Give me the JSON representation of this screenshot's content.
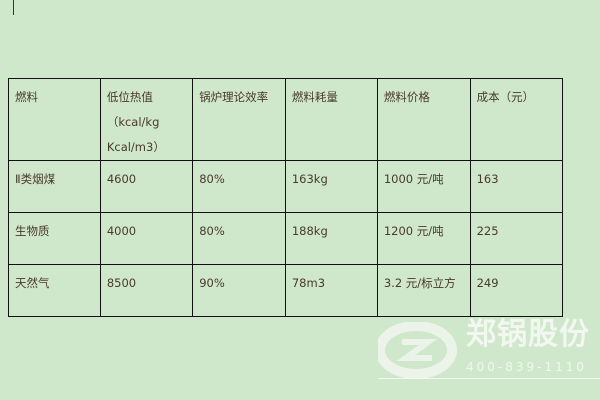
{
  "table": {
    "headers": [
      "燃料",
      [
        "低位热值",
        "（kcal/kg",
        "Kcal/m3）"
      ],
      "锅炉理论效率",
      "燃料耗量",
      "燃料价格",
      "成本（元）"
    ],
    "rows": [
      [
        "Ⅱ类烟煤",
        "4600",
        "80%",
        "163kg",
        "1000 元/吨",
        "163"
      ],
      [
        "生物质",
        "4000",
        "80%",
        "188kg",
        "1200 元/吨",
        "225"
      ],
      [
        "天然气",
        "8500",
        "90%",
        "78m3",
        "3.2 元/标立方",
        "249"
      ]
    ]
  },
  "watermark": {
    "name": "郑锅股份",
    "phone": "400-839-1110"
  }
}
